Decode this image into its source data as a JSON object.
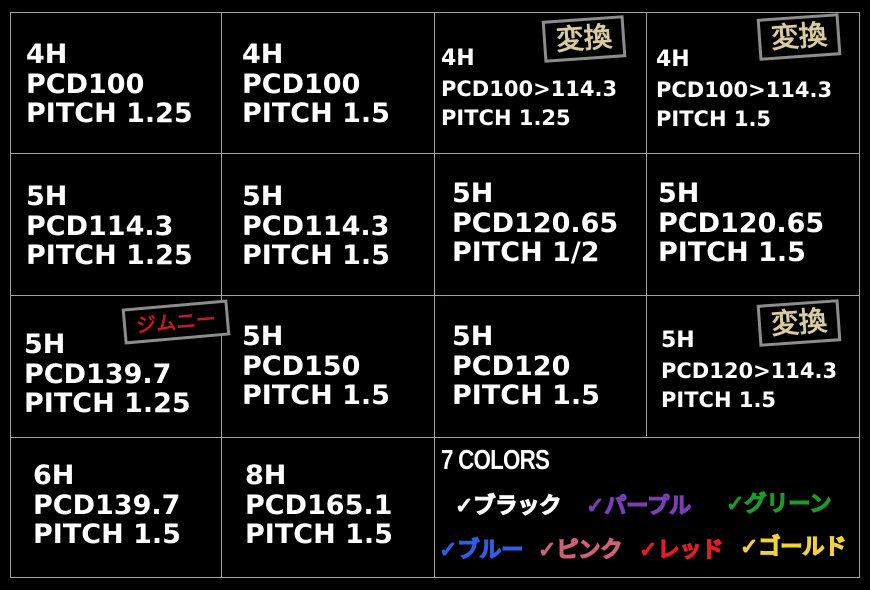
{
  "cells": [
    {
      "lines": [
        "4H",
        "PCD100",
        "PITCH 1.25"
      ]
    },
    {
      "lines": [
        "4H",
        "PCD100",
        "PITCH 1.5"
      ]
    },
    {
      "lines": [
        "4H",
        "PCD100>114.3",
        "PITCH 1.25"
      ],
      "badge": "変換"
    },
    {
      "lines": [
        "4H",
        "PCD100>114.3",
        "PITCH 1.5"
      ],
      "badge": "変換"
    },
    {
      "lines": [
        "5H",
        "PCD114.3",
        "PITCH 1.25"
      ]
    },
    {
      "lines": [
        "5H",
        "PCD114.3",
        "PITCH 1.5"
      ]
    },
    {
      "lines": [
        "5H",
        "PCD120.65",
        "PITCH 1/2"
      ]
    },
    {
      "lines": [
        "5H",
        "PCD120.65",
        "PITCH 1.5"
      ]
    },
    {
      "lines": [
        "5H",
        "PCD139.7",
        "PITCH 1.25"
      ],
      "badge": "ジムニー"
    },
    {
      "lines": [
        "5H",
        "PCD150",
        "PITCH 1.5"
      ]
    },
    {
      "lines": [
        "5H",
        "PCD120",
        "PITCH 1.5"
      ]
    },
    {
      "lines": [
        "5H",
        "PCD120>114.3",
        "PITCH 1.5"
      ],
      "badge": "変換"
    },
    {
      "lines": [
        "6H",
        "PCD139.7",
        "PITCH 1.5"
      ]
    },
    {
      "lines": [
        "8H",
        "PCD165.1",
        "PITCH 1.5"
      ]
    }
  ],
  "colors_title": "7 COLORS",
  "colors": [
    {
      "label": "✓ブラック",
      "color": "#ffffff"
    },
    {
      "label": "✓パープル",
      "color": "#7a3fb5"
    },
    {
      "label": "✓グリーン",
      "color": "#1e9a2a"
    },
    {
      "label": "✓ブルー",
      "color": "#2f5fe0"
    },
    {
      "label": "✓ピンク",
      "color": "#d0607a"
    },
    {
      "label": "✓レッド",
      "color": "#e01e24"
    },
    {
      "label": "✓ゴールド",
      "color": "#f0d23a"
    }
  ]
}
